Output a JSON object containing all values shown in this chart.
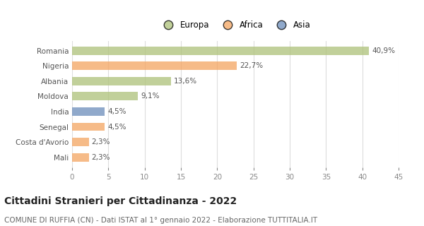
{
  "categories": [
    "Romania",
    "Nigeria",
    "Albania",
    "Moldova",
    "India",
    "Senegal",
    "Costa d'Avorio",
    "Mali"
  ],
  "values": [
    40.9,
    22.7,
    13.6,
    9.1,
    4.5,
    4.5,
    2.3,
    2.3
  ],
  "labels": [
    "40,9%",
    "22,7%",
    "13,6%",
    "9,1%",
    "4,5%",
    "4,5%",
    "2,3%",
    "2,3%"
  ],
  "colors": [
    "#adc178",
    "#f4a460",
    "#adc178",
    "#adc178",
    "#6b8cba",
    "#f4a460",
    "#f4a460",
    "#f4a460"
  ],
  "legend": [
    {
      "label": "Europa",
      "color": "#adc178"
    },
    {
      "label": "Africa",
      "color": "#f4a460"
    },
    {
      "label": "Asia",
      "color": "#6b8cba"
    }
  ],
  "xlim": [
    0,
    45
  ],
  "xticks": [
    0,
    5,
    10,
    15,
    20,
    25,
    30,
    35,
    40,
    45
  ],
  "title": "Cittadini Stranieri per Cittadinanza - 2022",
  "subtitle": "COMUNE DI RUFFIA (CN) - Dati ISTAT al 1° gennaio 2022 - Elaborazione TUTTITALIA.IT",
  "bg_color": "#ffffff",
  "grid_color": "#dddddd",
  "bar_alpha": 0.75,
  "title_fontsize": 10,
  "subtitle_fontsize": 7.5,
  "label_fontsize": 7.5,
  "tick_fontsize": 7.5,
  "legend_fontsize": 8.5
}
